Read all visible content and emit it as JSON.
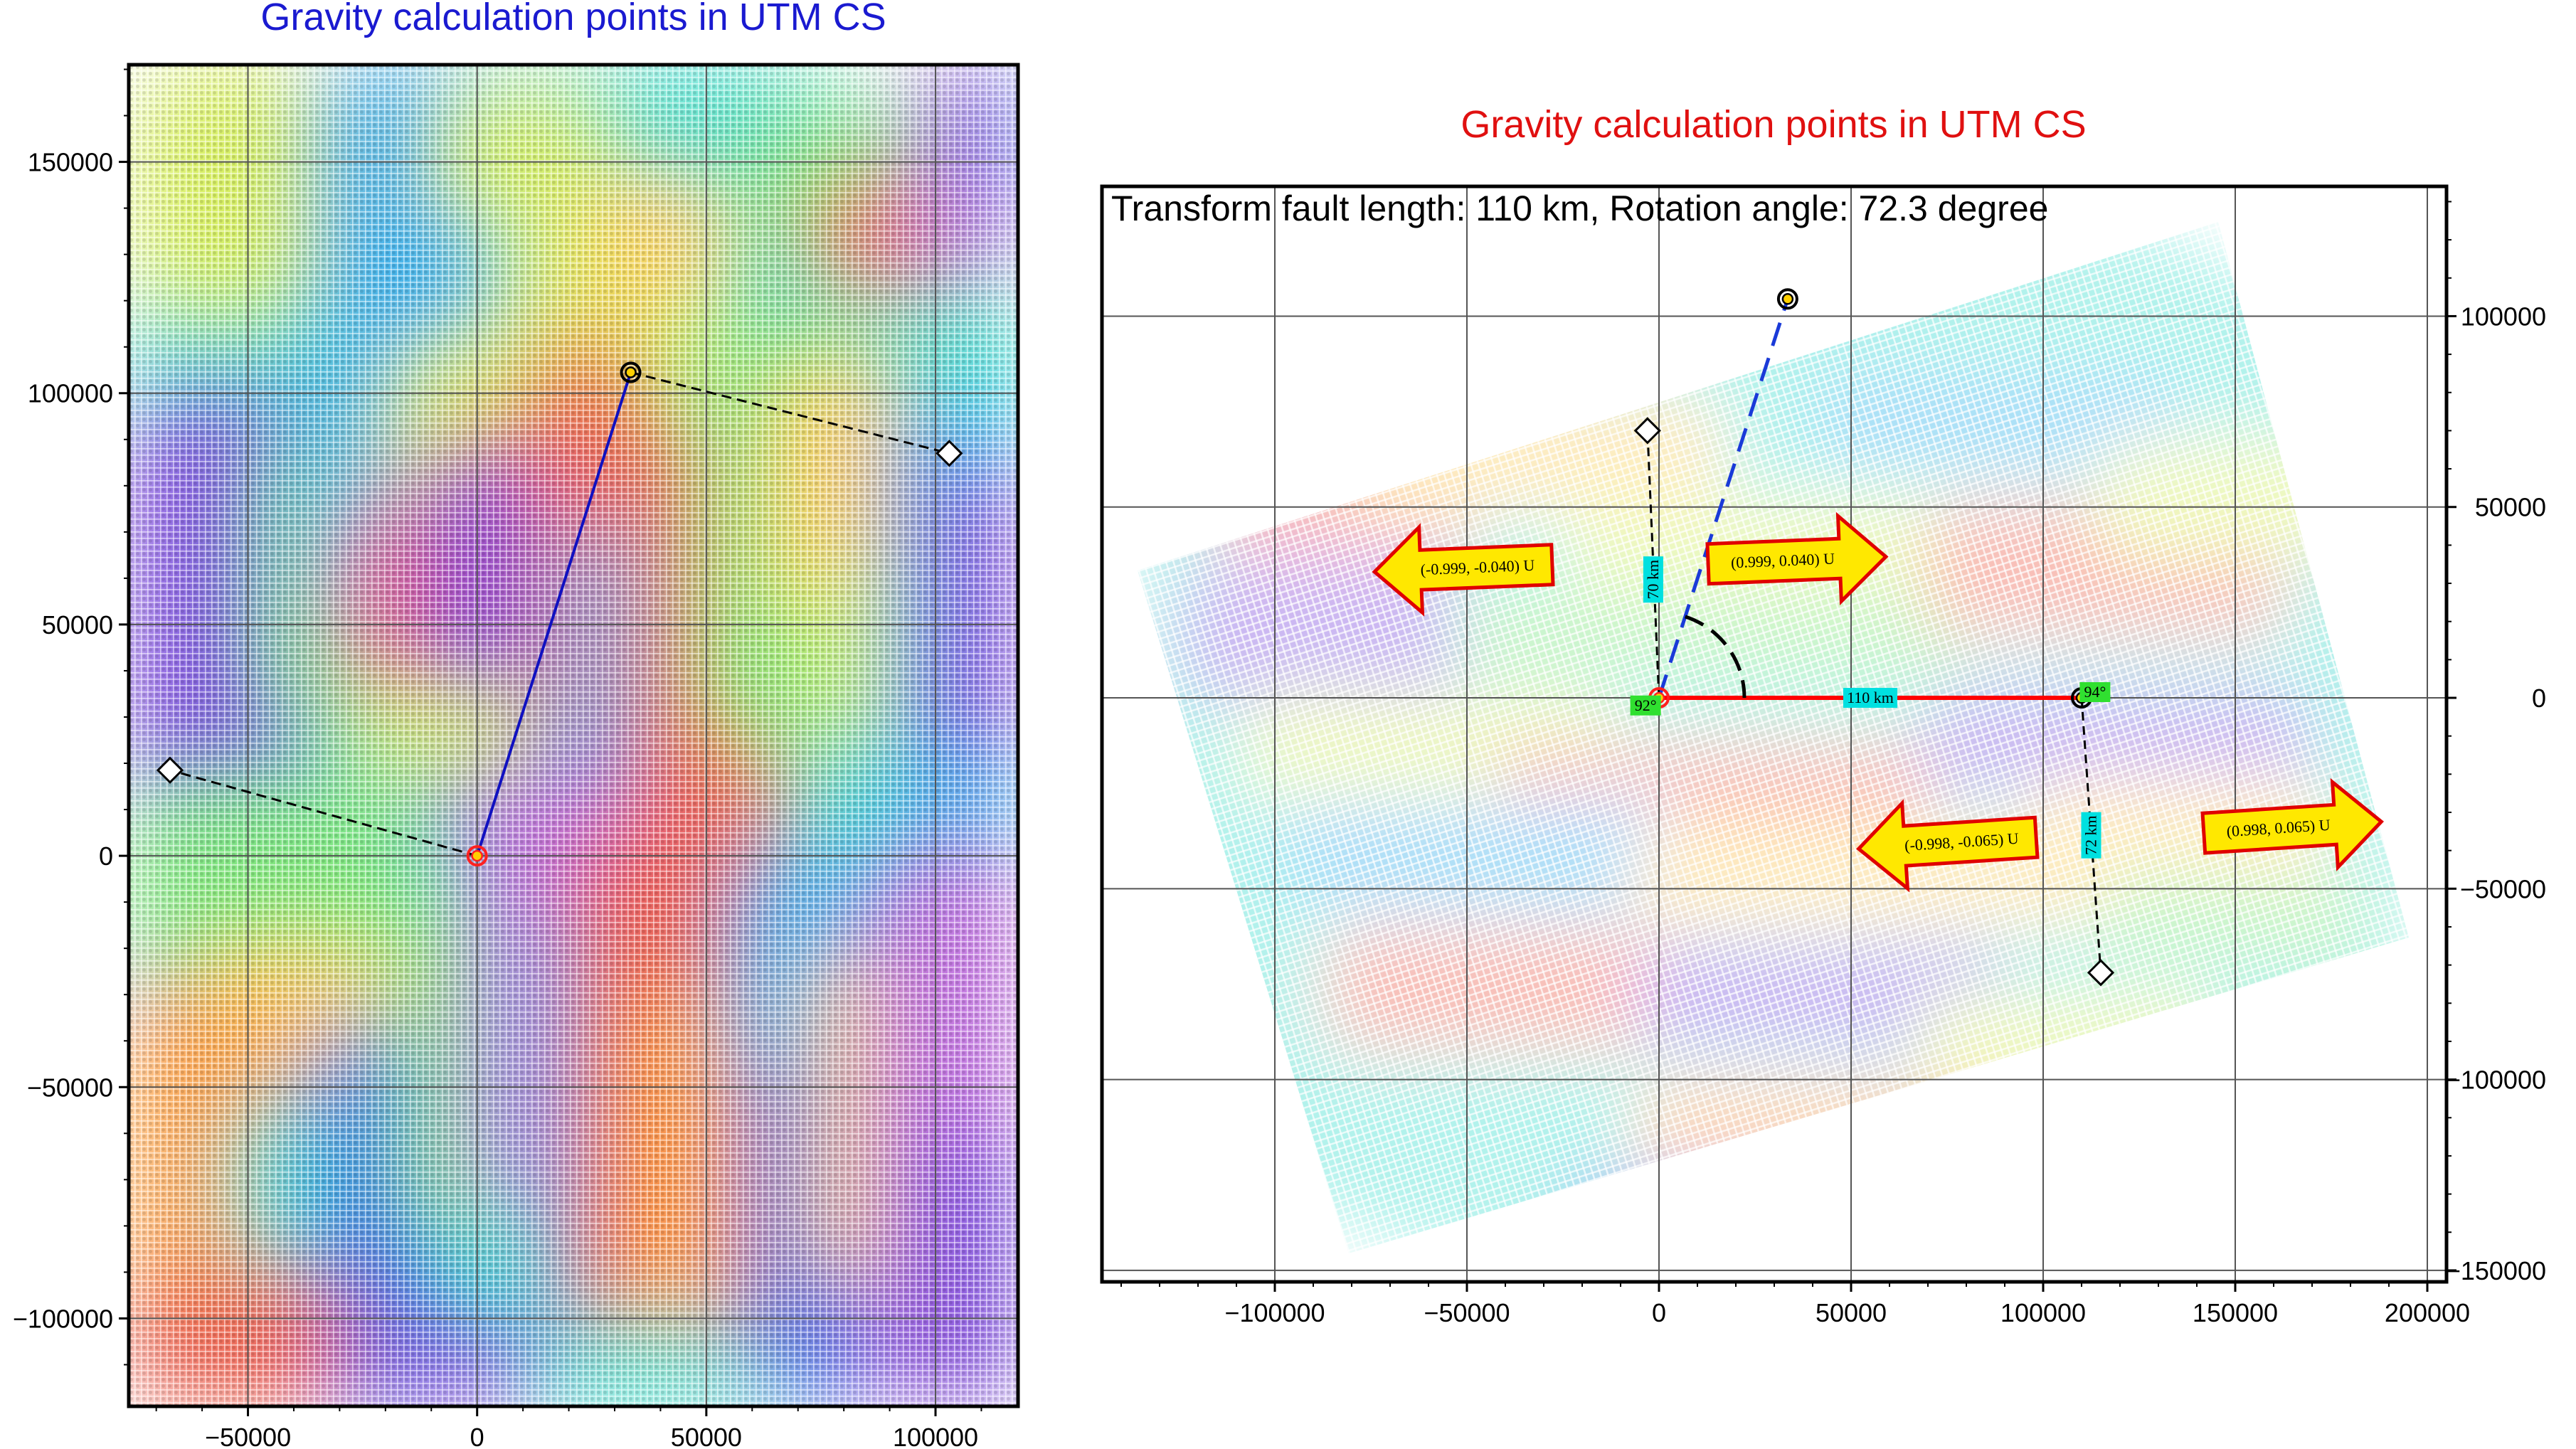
{
  "colors": {
    "left_title": "#1a1ad0",
    "right_title": "#e01010",
    "fault_line_left": "#1010c0",
    "fault_line_right": "#ff0000",
    "rotated_line": "#1a3ad8",
    "arrow_fill": "#ffe800",
    "arrow_stroke": "#e00000",
    "label_cyan": "#00e0e0",
    "label_green": "#30e030",
    "palette": [
      "#c070e0",
      "#8050e0",
      "#4070e8",
      "#30b0f0",
      "#40e0d0",
      "#80e880",
      "#d8f060",
      "#ffd060",
      "#ffa040",
      "#f06050"
    ]
  },
  "chart_data": [
    {
      "type": "scatter",
      "title": "Gravity calculation points in UTM CS",
      "xlabel": "",
      "ylabel": "",
      "xlim": [
        -76000,
        118000
      ],
      "ylim": [
        -119000,
        171000
      ],
      "xticks": [
        -50000,
        0,
        50000,
        100000
      ],
      "yticks": [
        -100000,
        -50000,
        0,
        50000,
        100000,
        150000
      ],
      "xtick_labels": [
        "−50000",
        "0",
        "50000",
        "100000"
      ],
      "ytick_labels": [
        "−100000",
        "−50000",
        "0",
        "50000",
        "100000",
        "150000"
      ],
      "grid": true,
      "series": [
        {
          "role": "fault-trace",
          "x": [
            0,
            33500
          ],
          "y": [
            0,
            104500
          ]
        },
        {
          "role": "profile-1",
          "x": [
            0,
            -67000
          ],
          "y": [
            0,
            18500
          ]
        },
        {
          "role": "profile-2",
          "x": [
            33500,
            103000
          ],
          "y": [
            104500,
            87000
          ]
        }
      ],
      "points": [
        {
          "name": "fault-start",
          "x": 0,
          "y": 0,
          "symbol": "circle-red"
        },
        {
          "name": "fault-end",
          "x": 33500,
          "y": 104500,
          "symbol": "circle-yellow"
        },
        {
          "name": "profile-1-end",
          "x": -67000,
          "y": 18500,
          "symbol": "diamond"
        },
        {
          "name": "profile-2-end",
          "x": 103000,
          "y": 87000,
          "symbol": "diamond"
        }
      ]
    },
    {
      "type": "scatter",
      "title": "Gravity calculation points in UTM CS",
      "annotation": "Transform fault length: 110 km,  Rotation angle: 72.3 degree",
      "xlabel": "",
      "ylabel": "",
      "xlim": [
        -145000,
        205000
      ],
      "ylim": [
        -153000,
        134000
      ],
      "xticks": [
        -100000,
        -50000,
        0,
        50000,
        100000,
        150000,
        200000
      ],
      "yticks": [
        -150000,
        -100000,
        -50000,
        0,
        50000,
        100000
      ],
      "xtick_labels": [
        "−100000",
        "−50000",
        "0",
        "50000",
        "100000",
        "150000",
        "200000"
      ],
      "ytick_labels": [
        "−150000",
        "−100000",
        "−50000",
        "0",
        "50000",
        "100000"
      ],
      "grid": true,
      "series": [
        {
          "role": "fault",
          "x": [
            0,
            110000
          ],
          "y": [
            0,
            0
          ]
        },
        {
          "role": "original-trace",
          "x": [
            0,
            33500
          ],
          "y": [
            0,
            104500
          ]
        },
        {
          "role": "profile-1",
          "x": [
            0,
            -3000
          ],
          "y": [
            0,
            70000
          ]
        },
        {
          "role": "profile-2",
          "x": [
            110000,
            115000
          ],
          "y": [
            0,
            -72000
          ]
        }
      ],
      "points": [
        {
          "name": "fault-start",
          "x": 0,
          "y": 0,
          "symbol": "circle-red"
        },
        {
          "name": "fault-end",
          "x": 110000,
          "y": 0,
          "symbol": "circle-yellow"
        },
        {
          "name": "trace-end",
          "x": 33500,
          "y": 104500,
          "symbol": "circle-yellow"
        },
        {
          "name": "profile-1-end",
          "x": -3000,
          "y": 70000,
          "symbol": "diamond"
        },
        {
          "name": "profile-2-end",
          "x": 115000,
          "y": -72000,
          "symbol": "diamond"
        }
      ],
      "labels": {
        "fault_length": "110 km",
        "profile_1_length": "70 km",
        "profile_2_length": "72 km",
        "angle_start": "92°",
        "angle_end": "94°"
      },
      "arrows": [
        {
          "label": "(-0.999, -0.040) U",
          "direction": "left",
          "x": -50000,
          "y": 34000
        },
        {
          "label": "(0.999, 0.040) U",
          "direction": "right",
          "x": 35000,
          "y": 36000
        },
        {
          "label": "(-0.998, -0.065) U",
          "direction": "left",
          "x": 76000,
          "y": -38000
        },
        {
          "label": "(0.998, 0.065) U",
          "direction": "right",
          "x": 164000,
          "y": -34000
        }
      ]
    }
  ]
}
